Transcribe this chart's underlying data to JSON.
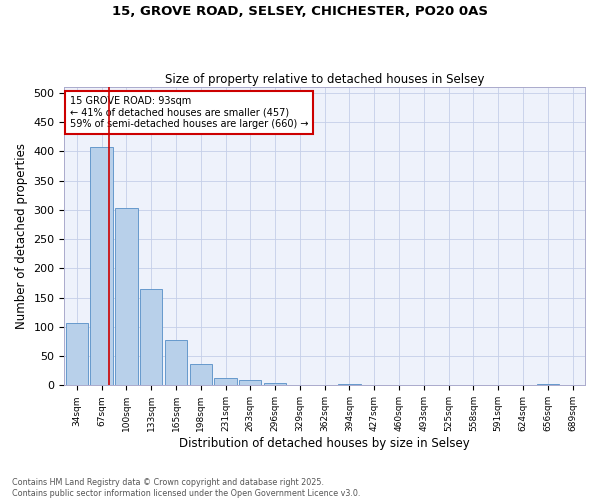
{
  "title1": "15, GROVE ROAD, SELSEY, CHICHESTER, PO20 0AS",
  "title2": "Size of property relative to detached houses in Selsey",
  "xlabel": "Distribution of detached houses by size in Selsey",
  "ylabel": "Number of detached properties",
  "bar_labels": [
    "34sqm",
    "67sqm",
    "100sqm",
    "133sqm",
    "165sqm",
    "198sqm",
    "231sqm",
    "263sqm",
    "296sqm",
    "329sqm",
    "362sqm",
    "394sqm",
    "427sqm",
    "460sqm",
    "493sqm",
    "525sqm",
    "558sqm",
    "591sqm",
    "624sqm",
    "656sqm",
    "689sqm"
  ],
  "bar_values": [
    107,
    407,
    303,
    165,
    77,
    36,
    13,
    9,
    4,
    0,
    0,
    2,
    0,
    0,
    0,
    0,
    0,
    0,
    0,
    3,
    0
  ],
  "bar_color": "#b8d0ea",
  "bar_edge_color": "#6699cc",
  "vline_color": "#cc0000",
  "annotation_text": "15 GROVE ROAD: 93sqm\n← 41% of detached houses are smaller (457)\n59% of semi-detached houses are larger (660) →",
  "annotation_box_color": "white",
  "annotation_box_edge": "#cc0000",
  "ylim": [
    0,
    510
  ],
  "yticks": [
    0,
    50,
    100,
    150,
    200,
    250,
    300,
    350,
    400,
    450,
    500
  ],
  "footer": "Contains HM Land Registry data © Crown copyright and database right 2025.\nContains public sector information licensed under the Open Government Licence v3.0.",
  "bg_color": "#eef2fb",
  "grid_color": "#c5cfe8"
}
